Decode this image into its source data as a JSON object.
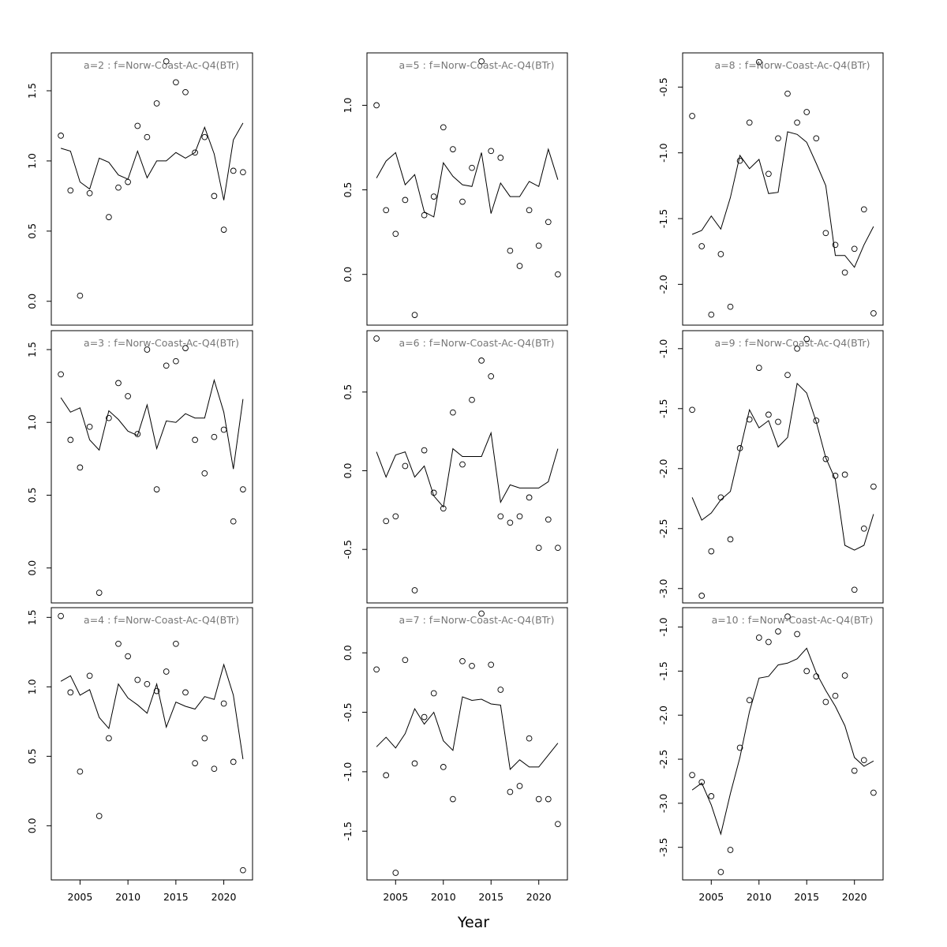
{
  "figure": {
    "xlabel": "Year"
  },
  "style": {
    "line_color": "#000000",
    "point_color": "#000000",
    "title_color": "#777777",
    "frame_color": "#000000"
  },
  "chart_data": [
    {
      "type": "scatter",
      "title": "a=2  :  f=Norw-Coast-Ac-Q4(BTr)",
      "x_ticks": [
        2005,
        2010,
        2015,
        2020
      ],
      "y_ticks": [
        "0.0",
        "0.5",
        "1.0",
        "1.5"
      ],
      "xlim": [
        2002,
        2023
      ],
      "ylim": [
        -0.17,
        1.77
      ],
      "series": [
        {
          "kind": "points",
          "x": [
            2003,
            2004,
            2005,
            2006,
            2008,
            2009,
            2010,
            2011,
            2012,
            2013,
            2014,
            2015,
            2016,
            2017,
            2018,
            2019,
            2020,
            2021,
            2022
          ],
          "y": [
            1.18,
            0.79,
            0.04,
            0.77,
            0.6,
            0.81,
            0.85,
            1.25,
            1.17,
            1.41,
            1.71,
            1.56,
            1.49,
            1.06,
            1.17,
            0.75,
            0.51,
            0.93,
            0.92
          ]
        },
        {
          "kind": "line",
          "x": [
            2003,
            2004,
            2005,
            2006,
            2007,
            2008,
            2009,
            2010,
            2011,
            2012,
            2013,
            2014,
            2015,
            2016,
            2017,
            2018,
            2019,
            2020,
            2021,
            2022
          ],
          "y": [
            1.09,
            1.07,
            0.85,
            0.8,
            1.02,
            0.99,
            0.9,
            0.87,
            1.07,
            0.88,
            1.0,
            1.0,
            1.06,
            1.02,
            1.06,
            1.24,
            1.05,
            0.72,
            1.15,
            1.27
          ]
        }
      ]
    },
    {
      "type": "scatter",
      "title": "a=5  :  f=Norw-Coast-Ac-Q4(BTr)",
      "x_ticks": [
        2005,
        2010,
        2015,
        2020
      ],
      "y_ticks": [
        "0.0",
        "0.5",
        "1.0"
      ],
      "xlim": [
        2002,
        2023
      ],
      "ylim": [
        -0.3,
        1.31
      ],
      "series": [
        {
          "kind": "points",
          "x": [
            2003,
            2004,
            2005,
            2006,
            2007,
            2008,
            2009,
            2010,
            2011,
            2012,
            2013,
            2014,
            2015,
            2016,
            2017,
            2018,
            2019,
            2020,
            2021,
            2022
          ],
          "y": [
            1.0,
            0.38,
            0.24,
            0.44,
            -0.24,
            0.35,
            0.46,
            0.87,
            0.74,
            0.43,
            0.63,
            1.26,
            0.73,
            0.69,
            0.14,
            0.05,
            0.38,
            0.17,
            0.31,
            0.0
          ]
        },
        {
          "kind": "line",
          "x": [
            2003,
            2004,
            2005,
            2006,
            2007,
            2008,
            2009,
            2010,
            2011,
            2012,
            2013,
            2014,
            2015,
            2016,
            2017,
            2018,
            2019,
            2020,
            2021,
            2022
          ],
          "y": [
            0.57,
            0.67,
            0.72,
            0.53,
            0.59,
            0.37,
            0.34,
            0.66,
            0.58,
            0.53,
            0.52,
            0.72,
            0.36,
            0.54,
            0.46,
            0.46,
            0.55,
            0.52,
            0.74,
            0.56
          ]
        }
      ]
    },
    {
      "type": "scatter",
      "title": "a=8  :  f=Norw-Coast-Ac-Q4(BTr)",
      "x_ticks": [
        2005,
        2010,
        2015,
        2020
      ],
      "y_ticks": [
        "-2.0",
        "-1.5",
        "-1.0",
        "-0.5"
      ],
      "xlim": [
        2002,
        2023
      ],
      "ylim": [
        -2.31,
        -0.24
      ],
      "series": [
        {
          "kind": "points",
          "x": [
            2003,
            2004,
            2005,
            2006,
            2007,
            2008,
            2009,
            2010,
            2011,
            2012,
            2013,
            2014,
            2015,
            2016,
            2017,
            2018,
            2019,
            2020,
            2021,
            2022
          ],
          "y": [
            -0.72,
            -1.71,
            -2.23,
            -1.77,
            -2.17,
            -1.06,
            -0.77,
            -0.31,
            -1.16,
            -0.89,
            -0.55,
            -0.77,
            -0.69,
            -0.89,
            -1.61,
            -1.7,
            -1.91,
            -1.73,
            -1.43,
            -2.22
          ]
        },
        {
          "kind": "line",
          "x": [
            2003,
            2004,
            2005,
            2006,
            2007,
            2008,
            2009,
            2010,
            2011,
            2012,
            2013,
            2014,
            2015,
            2016,
            2017,
            2018,
            2019,
            2020,
            2021,
            2022
          ],
          "y": [
            -1.62,
            -1.59,
            -1.48,
            -1.58,
            -1.34,
            -1.02,
            -1.12,
            -1.05,
            -1.31,
            -1.3,
            -0.84,
            -0.86,
            -0.92,
            -1.08,
            -1.25,
            -1.78,
            -1.78,
            -1.87,
            -1.7,
            -1.56
          ]
        }
      ]
    },
    {
      "type": "scatter",
      "title": "a=3  :  f=Norw-Coast-Ac-Q4(BTr)",
      "x_ticks": [
        2005,
        2010,
        2015,
        2020
      ],
      "y_ticks": [
        "0.0",
        "0.5",
        "1.0",
        "1.5"
      ],
      "xlim": [
        2002,
        2023
      ],
      "ylim": [
        -0.24,
        1.63
      ],
      "series": [
        {
          "kind": "points",
          "x": [
            2003,
            2004,
            2005,
            2006,
            2007,
            2008,
            2009,
            2010,
            2011,
            2012,
            2013,
            2014,
            2015,
            2016,
            2017,
            2018,
            2019,
            2020,
            2021,
            2022
          ],
          "y": [
            1.33,
            0.88,
            0.69,
            0.97,
            -0.17,
            1.03,
            1.27,
            1.18,
            0.92,
            1.5,
            0.54,
            1.39,
            1.42,
            1.51,
            0.88,
            0.65,
            0.9,
            0.95,
            0.32,
            0.54
          ]
        },
        {
          "kind": "line",
          "x": [
            2003,
            2004,
            2005,
            2006,
            2007,
            2008,
            2009,
            2010,
            2011,
            2012,
            2013,
            2014,
            2015,
            2016,
            2017,
            2018,
            2019,
            2020,
            2021,
            2022
          ],
          "y": [
            1.17,
            1.07,
            1.1,
            0.88,
            0.81,
            1.08,
            1.02,
            0.94,
            0.91,
            1.12,
            0.82,
            1.01,
            1.0,
            1.06,
            1.03,
            1.03,
            1.29,
            1.07,
            0.68,
            1.16
          ]
        }
      ]
    },
    {
      "type": "scatter",
      "title": "a=6  :  f=Norw-Coast-Ac-Q4(BTr)",
      "x_ticks": [
        2005,
        2010,
        2015,
        2020
      ],
      "y_ticks": [
        "-0.5",
        "0.0",
        "0.5"
      ],
      "xlim": [
        2002,
        2023
      ],
      "ylim": [
        -0.84,
        0.89
      ],
      "series": [
        {
          "kind": "points",
          "x": [
            2003,
            2004,
            2005,
            2006,
            2007,
            2008,
            2009,
            2010,
            2011,
            2012,
            2013,
            2014,
            2015,
            2016,
            2017,
            2018,
            2019,
            2020,
            2021,
            2022
          ],
          "y": [
            0.84,
            -0.32,
            -0.29,
            0.03,
            -0.76,
            0.13,
            -0.14,
            -0.24,
            0.37,
            0.04,
            0.45,
            0.7,
            0.6,
            -0.29,
            -0.33,
            -0.29,
            -0.17,
            -0.49,
            -0.31,
            -0.49
          ]
        },
        {
          "kind": "line",
          "x": [
            2003,
            2004,
            2005,
            2006,
            2007,
            2008,
            2009,
            2010,
            2011,
            2012,
            2013,
            2014,
            2015,
            2016,
            2017,
            2018,
            2019,
            2020,
            2021,
            2022
          ],
          "y": [
            0.12,
            -0.04,
            0.1,
            0.12,
            -0.04,
            0.03,
            -0.16,
            -0.23,
            0.14,
            0.09,
            0.09,
            0.09,
            0.24,
            -0.2,
            -0.09,
            -0.11,
            -0.11,
            -0.11,
            -0.07,
            0.14
          ]
        }
      ]
    },
    {
      "type": "scatter",
      "title": "a=9  :  f=Norw-Coast-Ac-Q4(BTr)",
      "x_ticks": [
        2005,
        2010,
        2015,
        2020
      ],
      "y_ticks": [
        "-3.0",
        "-2.5",
        "-2.0",
        "-1.5",
        "-1.0"
      ],
      "xlim": [
        2002,
        2023
      ],
      "ylim": [
        -3.12,
        -0.85
      ],
      "series": [
        {
          "kind": "points",
          "x": [
            2003,
            2004,
            2005,
            2006,
            2007,
            2008,
            2009,
            2010,
            2011,
            2012,
            2013,
            2014,
            2015,
            2016,
            2017,
            2018,
            2019,
            2020,
            2021,
            2022
          ],
          "y": [
            -1.51,
            -3.06,
            -2.69,
            -2.24,
            -2.59,
            -1.83,
            -1.59,
            -1.16,
            -1.55,
            -1.61,
            -1.22,
            -1.0,
            -0.92,
            -1.6,
            -1.92,
            -2.06,
            -2.05,
            -3.01,
            -2.5,
            -2.15
          ]
        },
        {
          "kind": "line",
          "x": [
            2003,
            2004,
            2005,
            2006,
            2007,
            2008,
            2009,
            2010,
            2011,
            2012,
            2013,
            2014,
            2015,
            2016,
            2017,
            2018,
            2019,
            2020,
            2021,
            2022
          ],
          "y": [
            -2.24,
            -2.43,
            -2.37,
            -2.26,
            -2.19,
            -1.85,
            -1.51,
            -1.66,
            -1.6,
            -1.82,
            -1.74,
            -1.29,
            -1.37,
            -1.61,
            -1.91,
            -2.09,
            -2.64,
            -2.68,
            -2.64,
            -2.38
          ]
        }
      ]
    },
    {
      "type": "scatter",
      "title": "a=4  :  f=Norw-Coast-Ac-Q4(BTr)",
      "x_ticks": [
        2005,
        2010,
        2015,
        2020
      ],
      "y_ticks": [
        "0.0",
        "0.5",
        "1.0",
        "1.5"
      ],
      "xlim": [
        2002,
        2023
      ],
      "ylim": [
        -0.39,
        1.57
      ],
      "series": [
        {
          "kind": "points",
          "x": [
            2003,
            2004,
            2005,
            2006,
            2007,
            2008,
            2009,
            2010,
            2011,
            2012,
            2013,
            2014,
            2015,
            2016,
            2017,
            2018,
            2019,
            2020,
            2021,
            2022
          ],
          "y": [
            1.51,
            0.96,
            0.39,
            1.08,
            0.07,
            0.63,
            1.31,
            1.22,
            1.05,
            1.02,
            0.97,
            1.11,
            1.31,
            0.96,
            0.45,
            0.63,
            0.41,
            0.88,
            0.46,
            -0.32
          ]
        },
        {
          "kind": "line",
          "x": [
            2003,
            2004,
            2005,
            2006,
            2007,
            2008,
            2009,
            2010,
            2011,
            2012,
            2013,
            2014,
            2015,
            2016,
            2017,
            2018,
            2019,
            2020,
            2021,
            2022
          ],
          "y": [
            1.04,
            1.08,
            0.94,
            0.98,
            0.78,
            0.7,
            1.02,
            0.92,
            0.87,
            0.81,
            1.02,
            0.71,
            0.89,
            0.86,
            0.84,
            0.93,
            0.91,
            1.16,
            0.94,
            0.48
          ]
        }
      ]
    },
    {
      "type": "scatter",
      "title": "a=7  :  f=Norw-Coast-Ac-Q4(BTr)",
      "x_ticks": [
        2005,
        2010,
        2015,
        2020
      ],
      "y_ticks": [
        "-1.5",
        "-1.0",
        "-0.5",
        "0.0"
      ],
      "xlim": [
        2002,
        2023
      ],
      "ylim": [
        -1.91,
        0.38
      ],
      "series": [
        {
          "kind": "points",
          "x": [
            2003,
            2004,
            2005,
            2006,
            2007,
            2008,
            2009,
            2010,
            2011,
            2012,
            2013,
            2014,
            2015,
            2016,
            2017,
            2018,
            2019,
            2020,
            2021,
            2022
          ],
          "y": [
            -0.14,
            -1.03,
            -1.85,
            -0.06,
            -0.93,
            -0.54,
            -0.34,
            -0.96,
            -1.23,
            -0.07,
            -0.11,
            0.33,
            -0.1,
            -0.31,
            -1.17,
            -1.12,
            -0.72,
            -1.23,
            -1.23,
            -1.44
          ]
        },
        {
          "kind": "line",
          "x": [
            2003,
            2004,
            2005,
            2006,
            2007,
            2008,
            2009,
            2010,
            2011,
            2012,
            2013,
            2014,
            2015,
            2016,
            2017,
            2018,
            2019,
            2020,
            2021,
            2022
          ],
          "y": [
            -0.79,
            -0.71,
            -0.8,
            -0.68,
            -0.47,
            -0.6,
            -0.5,
            -0.74,
            -0.82,
            -0.37,
            -0.4,
            -0.39,
            -0.43,
            -0.44,
            -0.98,
            -0.9,
            -0.96,
            -0.96,
            -0.86,
            -0.76
          ]
        }
      ]
    },
    {
      "type": "scatter",
      "title": "a=10  :  f=Norw-Coast-Ac-Q4(BTr)",
      "x_ticks": [
        2005,
        2010,
        2015,
        2020
      ],
      "y_ticks": [
        "-3.5",
        "-3.0",
        "-2.5",
        "-2.0",
        "-1.5",
        "-1.0"
      ],
      "xlim": [
        2002,
        2023
      ],
      "ylim": [
        -3.87,
        -0.78
      ],
      "series": [
        {
          "kind": "points",
          "x": [
            2003,
            2004,
            2005,
            2006,
            2007,
            2008,
            2009,
            2010,
            2011,
            2012,
            2013,
            2014,
            2015,
            2016,
            2017,
            2018,
            2019,
            2020,
            2021,
            2022
          ],
          "y": [
            -2.68,
            -2.76,
            -2.92,
            -3.78,
            -3.53,
            -2.37,
            -1.83,
            -1.12,
            -1.17,
            -1.05,
            -0.88,
            -1.08,
            -1.5,
            -1.56,
            -1.85,
            -1.78,
            -1.55,
            -2.63,
            -2.51,
            -2.88
          ]
        },
        {
          "kind": "line",
          "x": [
            2003,
            2004,
            2005,
            2006,
            2007,
            2008,
            2009,
            2010,
            2011,
            2012,
            2013,
            2014,
            2015,
            2016,
            2017,
            2018,
            2019,
            2020,
            2021,
            2022
          ],
          "y": [
            -2.85,
            -2.77,
            -3.02,
            -3.35,
            -2.89,
            -2.48,
            -1.96,
            -1.58,
            -1.56,
            -1.43,
            -1.41,
            -1.36,
            -1.24,
            -1.52,
            -1.72,
            -1.9,
            -2.12,
            -2.48,
            -2.58,
            -2.52
          ]
        }
      ]
    }
  ]
}
